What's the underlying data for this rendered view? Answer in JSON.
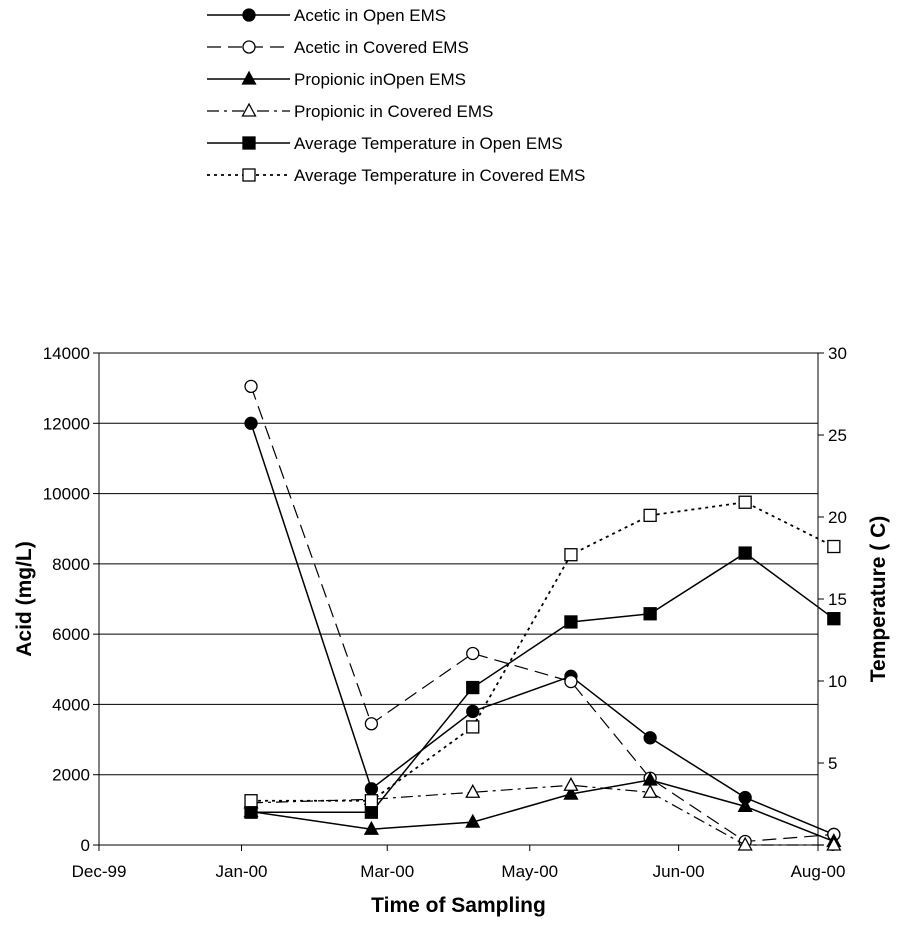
{
  "chart_data": {
    "type": "line",
    "title": "",
    "xlabel": "Time of Sampling",
    "ylabel": "Acid (mg/L)",
    "y2label": "Temperature ( C)",
    "x_ticks": [
      "Dec-99",
      "Jan-00",
      "Mar-00",
      "May-00",
      "Jun-00",
      "Aug-00"
    ],
    "x_tick_dates": [
      "1999-12-01",
      "2000-01-15",
      "2000-03-01",
      "2000-04-15",
      "2000-06-01",
      "2000-07-15"
    ],
    "xlim": [
      "1999-12-01",
      "2000-07-15"
    ],
    "ylim": [
      0,
      14000
    ],
    "y_ticks": [
      "0",
      "2000",
      "4000",
      "6000",
      "8000",
      "10000",
      "12000",
      "14000"
    ],
    "y2lim": [
      0,
      30
    ],
    "y2_ticks": [
      "0",
      "5",
      "10",
      "15",
      "20",
      "25",
      "30"
    ],
    "grid": "horizontal major gridlines",
    "legend_position": "top",
    "series": [
      {
        "name": "Acetic in Open EMS",
        "axis": "left",
        "style": "solid",
        "marker": "circle-filled",
        "x": [
          "2000-01-18",
          "2000-02-25",
          "2000-03-28",
          "2000-04-28",
          "2000-05-23",
          "2000-06-22",
          "2000-07-20"
        ],
        "y": [
          12000,
          1600,
          3800,
          4800,
          3050,
          1350,
          300
        ]
      },
      {
        "name": "Acetic in Covered EMS",
        "axis": "left",
        "style": "dashed",
        "marker": "circle-open",
        "x": [
          "2000-01-18",
          "2000-02-25",
          "2000-03-28",
          "2000-04-28",
          "2000-05-23",
          "2000-06-22",
          "2000-07-20"
        ],
        "y": [
          13050,
          3450,
          5450,
          4650,
          1900,
          100,
          300
        ]
      },
      {
        "name": "Propionic inOpen EMS",
        "axis": "left",
        "style": "solid",
        "marker": "triangle-filled",
        "x": [
          "2000-01-18",
          "2000-02-25",
          "2000-03-28",
          "2000-04-28",
          "2000-05-23",
          "2000-06-22",
          "2000-07-20"
        ],
        "y": [
          950,
          450,
          650,
          1450,
          1850,
          1100,
          100
        ]
      },
      {
        "name": "Propionic in Covered EMS",
        "axis": "left",
        "style": "dash-dot",
        "marker": "triangle-open",
        "x": [
          "2000-01-18",
          "2000-02-25",
          "2000-03-28",
          "2000-04-28",
          "2000-05-23",
          "2000-06-22",
          "2000-07-20"
        ],
        "y": [
          1200,
          1300,
          1500,
          1700,
          1500,
          0,
          0
        ]
      },
      {
        "name": "Average Temperature in Open EMS",
        "axis": "right",
        "style": "solid",
        "marker": "square-filled",
        "x": [
          "2000-01-18",
          "2000-02-25",
          "2000-03-28",
          "2000-04-28",
          "2000-05-23",
          "2000-06-22",
          "2000-07-20"
        ],
        "y": [
          2.0,
          2.0,
          9.6,
          13.6,
          14.1,
          17.8,
          13.8
        ]
      },
      {
        "name": "Average Temperature in Covered EMS",
        "axis": "right",
        "style": "dotted",
        "marker": "square-open",
        "x": [
          "2000-01-18",
          "2000-02-25",
          "2000-03-28",
          "2000-04-28",
          "2000-05-23",
          "2000-06-22",
          "2000-07-20"
        ],
        "y": [
          2.7,
          2.7,
          7.2,
          17.7,
          20.1,
          20.9,
          18.2
        ]
      }
    ]
  }
}
